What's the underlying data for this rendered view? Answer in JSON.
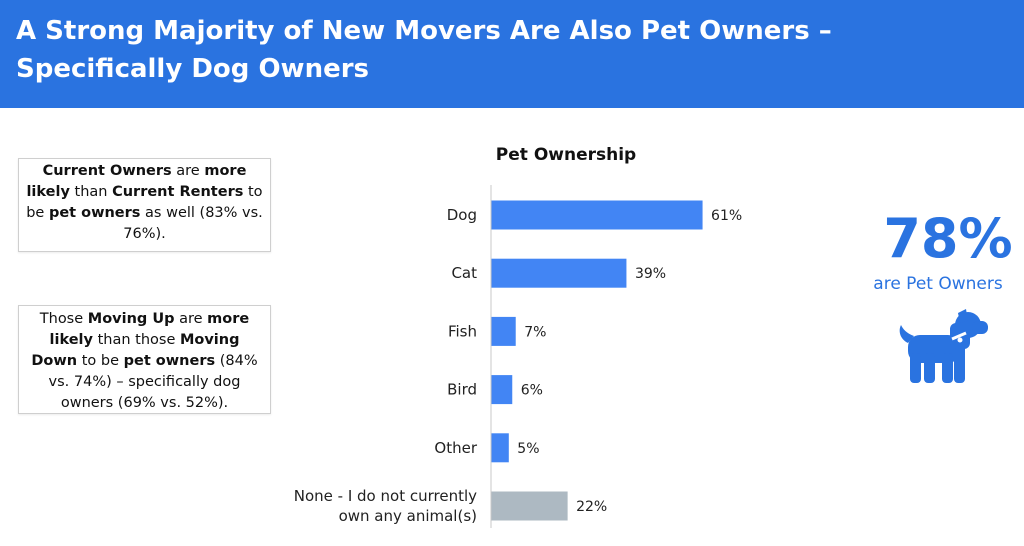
{
  "header": {
    "title": "A Strong Majority of New Movers Are Also Pet Owners – Specifically Dog Owners"
  },
  "callouts": [
    {
      "parts": [
        {
          "text": "Current Owners",
          "bold": true
        },
        {
          "text": " are ",
          "bold": false
        },
        {
          "text": "more likely",
          "bold": true
        },
        {
          "text": " than ",
          "bold": false
        },
        {
          "text": "Current Renters",
          "bold": true
        },
        {
          "text": " to be ",
          "bold": false
        },
        {
          "text": "pet owners",
          "bold": true
        },
        {
          "text": " as well (83% vs. 76%).",
          "bold": false
        }
      ]
    },
    {
      "parts": [
        {
          "text": "Those ",
          "bold": false
        },
        {
          "text": "Moving Up",
          "bold": true
        },
        {
          "text": " are ",
          "bold": false
        },
        {
          "text": "more likely",
          "bold": true
        },
        {
          "text": " than those ",
          "bold": false
        },
        {
          "text": "Moving Down",
          "bold": true
        },
        {
          "text": " to be ",
          "bold": false
        },
        {
          "text": "pet owners",
          "bold": true
        },
        {
          "text": " (84% vs. 74%) – specifically dog owners (69% vs. 52%).",
          "bold": false
        }
      ]
    }
  ],
  "stat": {
    "value": "78%",
    "caption": "are Pet Owners",
    "icon": "dog-icon",
    "color": "#2a73e0"
  },
  "chart_data": {
    "type": "bar",
    "orientation": "horizontal",
    "title": "Pet Ownership",
    "xlabel": "",
    "ylabel": "",
    "xlim": [
      0,
      100
    ],
    "grid": false,
    "categories": [
      [
        "Dog"
      ],
      [
        "Cat"
      ],
      [
        "Fish"
      ],
      [
        "Bird"
      ],
      [
        "Other"
      ],
      [
        "None - I do not currently",
        "own any animal(s)"
      ]
    ],
    "values": [
      61,
      39,
      7,
      6,
      5,
      22
    ],
    "value_labels": [
      "61%",
      "39%",
      "7%",
      "6%",
      "5%",
      "22%"
    ],
    "bar_colors": [
      "#4285f4",
      "#4285f4",
      "#4285f4",
      "#4285f4",
      "#4285f4",
      "#adb9c2"
    ]
  }
}
